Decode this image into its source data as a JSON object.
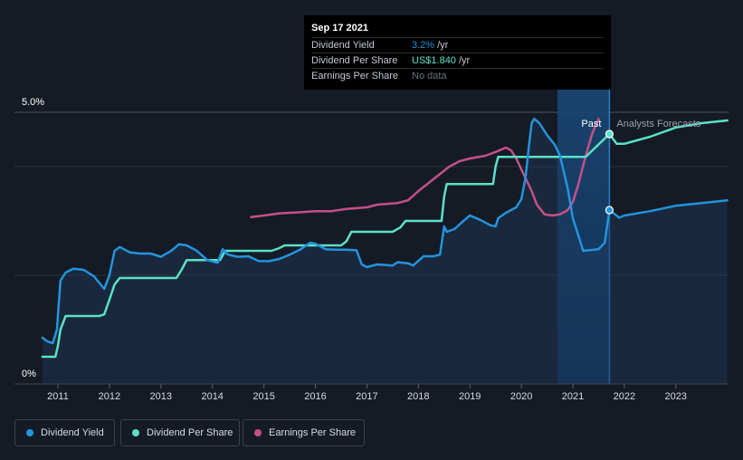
{
  "chart_data": {
    "type": "line",
    "title": "",
    "x_range": [
      2010.6,
      2024.0
    ],
    "x_ticks": [
      2011,
      2012,
      2013,
      2014,
      2015,
      2016,
      2017,
      2018,
      2019,
      2020,
      2021,
      2022,
      2023
    ],
    "y_range": [
      0,
      5.0
    ],
    "y_tick_labels": [
      "5.0%",
      "0%"
    ],
    "y_tick_values": [
      5.0,
      0
    ],
    "grid": true,
    "past_label": "Past",
    "forecast_label": "Analysts Forecasts",
    "divider_x": 2021.71,
    "series": [
      {
        "name": "Dividend Yield",
        "color": "#2394df",
        "unit": "%",
        "points": [
          [
            2010.7,
            0.85
          ],
          [
            2010.8,
            0.78
          ],
          [
            2010.9,
            0.75
          ],
          [
            2010.98,
            1.0
          ],
          [
            2011.05,
            1.9
          ],
          [
            2011.15,
            2.05
          ],
          [
            2011.3,
            2.12
          ],
          [
            2011.5,
            2.1
          ],
          [
            2011.7,
            1.98
          ],
          [
            2011.9,
            1.75
          ],
          [
            2012.0,
            2.0
          ],
          [
            2012.1,
            2.45
          ],
          [
            2012.2,
            2.52
          ],
          [
            2012.4,
            2.42
          ],
          [
            2012.6,
            2.4
          ],
          [
            2012.8,
            2.4
          ],
          [
            2013.0,
            2.34
          ],
          [
            2013.2,
            2.45
          ],
          [
            2013.35,
            2.57
          ],
          [
            2013.5,
            2.55
          ],
          [
            2013.7,
            2.45
          ],
          [
            2013.9,
            2.28
          ],
          [
            2014.1,
            2.23
          ],
          [
            2014.2,
            2.48
          ],
          [
            2014.3,
            2.38
          ],
          [
            2014.5,
            2.34
          ],
          [
            2014.7,
            2.35
          ],
          [
            2014.9,
            2.26
          ],
          [
            2015.1,
            2.26
          ],
          [
            2015.3,
            2.3
          ],
          [
            2015.5,
            2.38
          ],
          [
            2015.7,
            2.47
          ],
          [
            2015.9,
            2.6
          ],
          [
            2016.0,
            2.58
          ],
          [
            2016.2,
            2.48
          ],
          [
            2016.4,
            2.47
          ],
          [
            2016.6,
            2.47
          ],
          [
            2016.8,
            2.46
          ],
          [
            2016.9,
            2.2
          ],
          [
            2017.0,
            2.15
          ],
          [
            2017.2,
            2.2
          ],
          [
            2017.5,
            2.18
          ],
          [
            2017.6,
            2.24
          ],
          [
            2017.8,
            2.22
          ],
          [
            2017.9,
            2.18
          ],
          [
            2018.1,
            2.35
          ],
          [
            2018.3,
            2.35
          ],
          [
            2018.42,
            2.38
          ],
          [
            2018.5,
            2.9
          ],
          [
            2018.55,
            2.8
          ],
          [
            2018.7,
            2.85
          ],
          [
            2018.9,
            3.02
          ],
          [
            2019.0,
            3.1
          ],
          [
            2019.2,
            3.02
          ],
          [
            2019.4,
            2.92
          ],
          [
            2019.5,
            2.9
          ],
          [
            2019.55,
            3.05
          ],
          [
            2019.7,
            3.15
          ],
          [
            2019.9,
            3.25
          ],
          [
            2020.0,
            3.4
          ],
          [
            2020.08,
            3.8
          ],
          [
            2020.15,
            4.4
          ],
          [
            2020.2,
            4.8
          ],
          [
            2020.25,
            4.88
          ],
          [
            2020.35,
            4.8
          ],
          [
            2020.5,
            4.58
          ],
          [
            2020.65,
            4.4
          ],
          [
            2020.75,
            4.2
          ],
          [
            2020.9,
            3.6
          ],
          [
            2021.0,
            3.05
          ],
          [
            2021.1,
            2.75
          ],
          [
            2021.2,
            2.45
          ],
          [
            2021.5,
            2.48
          ],
          [
            2021.62,
            2.6
          ],
          [
            2021.71,
            3.2
          ],
          [
            2021.9,
            3.06
          ],
          [
            2022.0,
            3.1
          ],
          [
            2022.5,
            3.18
          ],
          [
            2023.0,
            3.28
          ],
          [
            2023.5,
            3.33
          ],
          [
            2024.0,
            3.38
          ]
        ]
      },
      {
        "name": "Dividend Per Share",
        "color": "#5be1c7",
        "unit": "US$",
        "points": [
          [
            2010.7,
            0.5
          ],
          [
            2010.95,
            0.5
          ],
          [
            2011.0,
            0.7
          ],
          [
            2011.05,
            1.0
          ],
          [
            2011.15,
            1.25
          ],
          [
            2011.8,
            1.25
          ],
          [
            2011.9,
            1.28
          ],
          [
            2012.0,
            1.55
          ],
          [
            2012.1,
            1.83
          ],
          [
            2012.2,
            1.95
          ],
          [
            2013.3,
            1.95
          ],
          [
            2013.4,
            2.1
          ],
          [
            2013.5,
            2.28
          ],
          [
            2014.15,
            2.28
          ],
          [
            2014.25,
            2.45
          ],
          [
            2015.15,
            2.45
          ],
          [
            2015.3,
            2.5
          ],
          [
            2015.4,
            2.55
          ],
          [
            2016.5,
            2.55
          ],
          [
            2016.6,
            2.62
          ],
          [
            2016.7,
            2.8
          ],
          [
            2017.5,
            2.8
          ],
          [
            2017.65,
            2.88
          ],
          [
            2017.75,
            3.0
          ],
          [
            2018.45,
            3.0
          ],
          [
            2018.5,
            3.45
          ],
          [
            2018.55,
            3.68
          ],
          [
            2019.45,
            3.68
          ],
          [
            2019.5,
            4.0
          ],
          [
            2019.55,
            4.18
          ],
          [
            2021.15,
            4.18
          ],
          [
            2021.25,
            4.18
          ],
          [
            2021.71,
            4.6
          ],
          [
            2021.85,
            4.42
          ],
          [
            2022.0,
            4.42
          ],
          [
            2022.5,
            4.55
          ],
          [
            2023.0,
            4.72
          ],
          [
            2023.5,
            4.8
          ],
          [
            2024.0,
            4.85
          ]
        ]
      },
      {
        "name": "Earnings Per Share",
        "color": "#c4508a",
        "unit": "US$",
        "points": [
          [
            2014.75,
            3.07
          ],
          [
            2015.0,
            3.1
          ],
          [
            2015.3,
            3.14
          ],
          [
            2015.7,
            3.16
          ],
          [
            2016.0,
            3.18
          ],
          [
            2016.3,
            3.18
          ],
          [
            2016.6,
            3.22
          ],
          [
            2017.0,
            3.25
          ],
          [
            2017.2,
            3.3
          ],
          [
            2017.6,
            3.33
          ],
          [
            2017.8,
            3.38
          ],
          [
            2018.0,
            3.55
          ],
          [
            2018.2,
            3.7
          ],
          [
            2018.4,
            3.85
          ],
          [
            2018.6,
            4.0
          ],
          [
            2018.8,
            4.1
          ],
          [
            2019.0,
            4.15
          ],
          [
            2019.3,
            4.2
          ],
          [
            2019.5,
            4.27
          ],
          [
            2019.7,
            4.35
          ],
          [
            2019.8,
            4.3
          ],
          [
            2019.9,
            4.15
          ],
          [
            2020.0,
            3.95
          ],
          [
            2020.2,
            3.55
          ],
          [
            2020.3,
            3.3
          ],
          [
            2020.45,
            3.12
          ],
          [
            2020.6,
            3.1
          ],
          [
            2020.75,
            3.12
          ],
          [
            2020.9,
            3.2
          ],
          [
            2021.0,
            3.35
          ],
          [
            2021.1,
            3.65
          ],
          [
            2021.25,
            4.2
          ],
          [
            2021.38,
            4.62
          ],
          [
            2021.5,
            4.88
          ]
        ]
      }
    ]
  },
  "tooltip": {
    "date": "Sep 17 2021",
    "rows": [
      {
        "label": "Dividend Yield",
        "value": "3.2%",
        "unit": "/yr",
        "color": "#2394df"
      },
      {
        "label": "Dividend Per Share",
        "value": "US$1.840",
        "unit": "/yr",
        "color": "#5be1c7"
      },
      {
        "label": "Earnings Per Share",
        "value": "No data",
        "unit": "",
        "color": "#6b727d"
      }
    ]
  },
  "legend": [
    {
      "label": "Dividend Yield",
      "color": "#2394df"
    },
    {
      "label": "Dividend Per Share",
      "color": "#5be1c7"
    },
    {
      "label": "Earnings Per Share",
      "color": "#c4508a"
    }
  ]
}
